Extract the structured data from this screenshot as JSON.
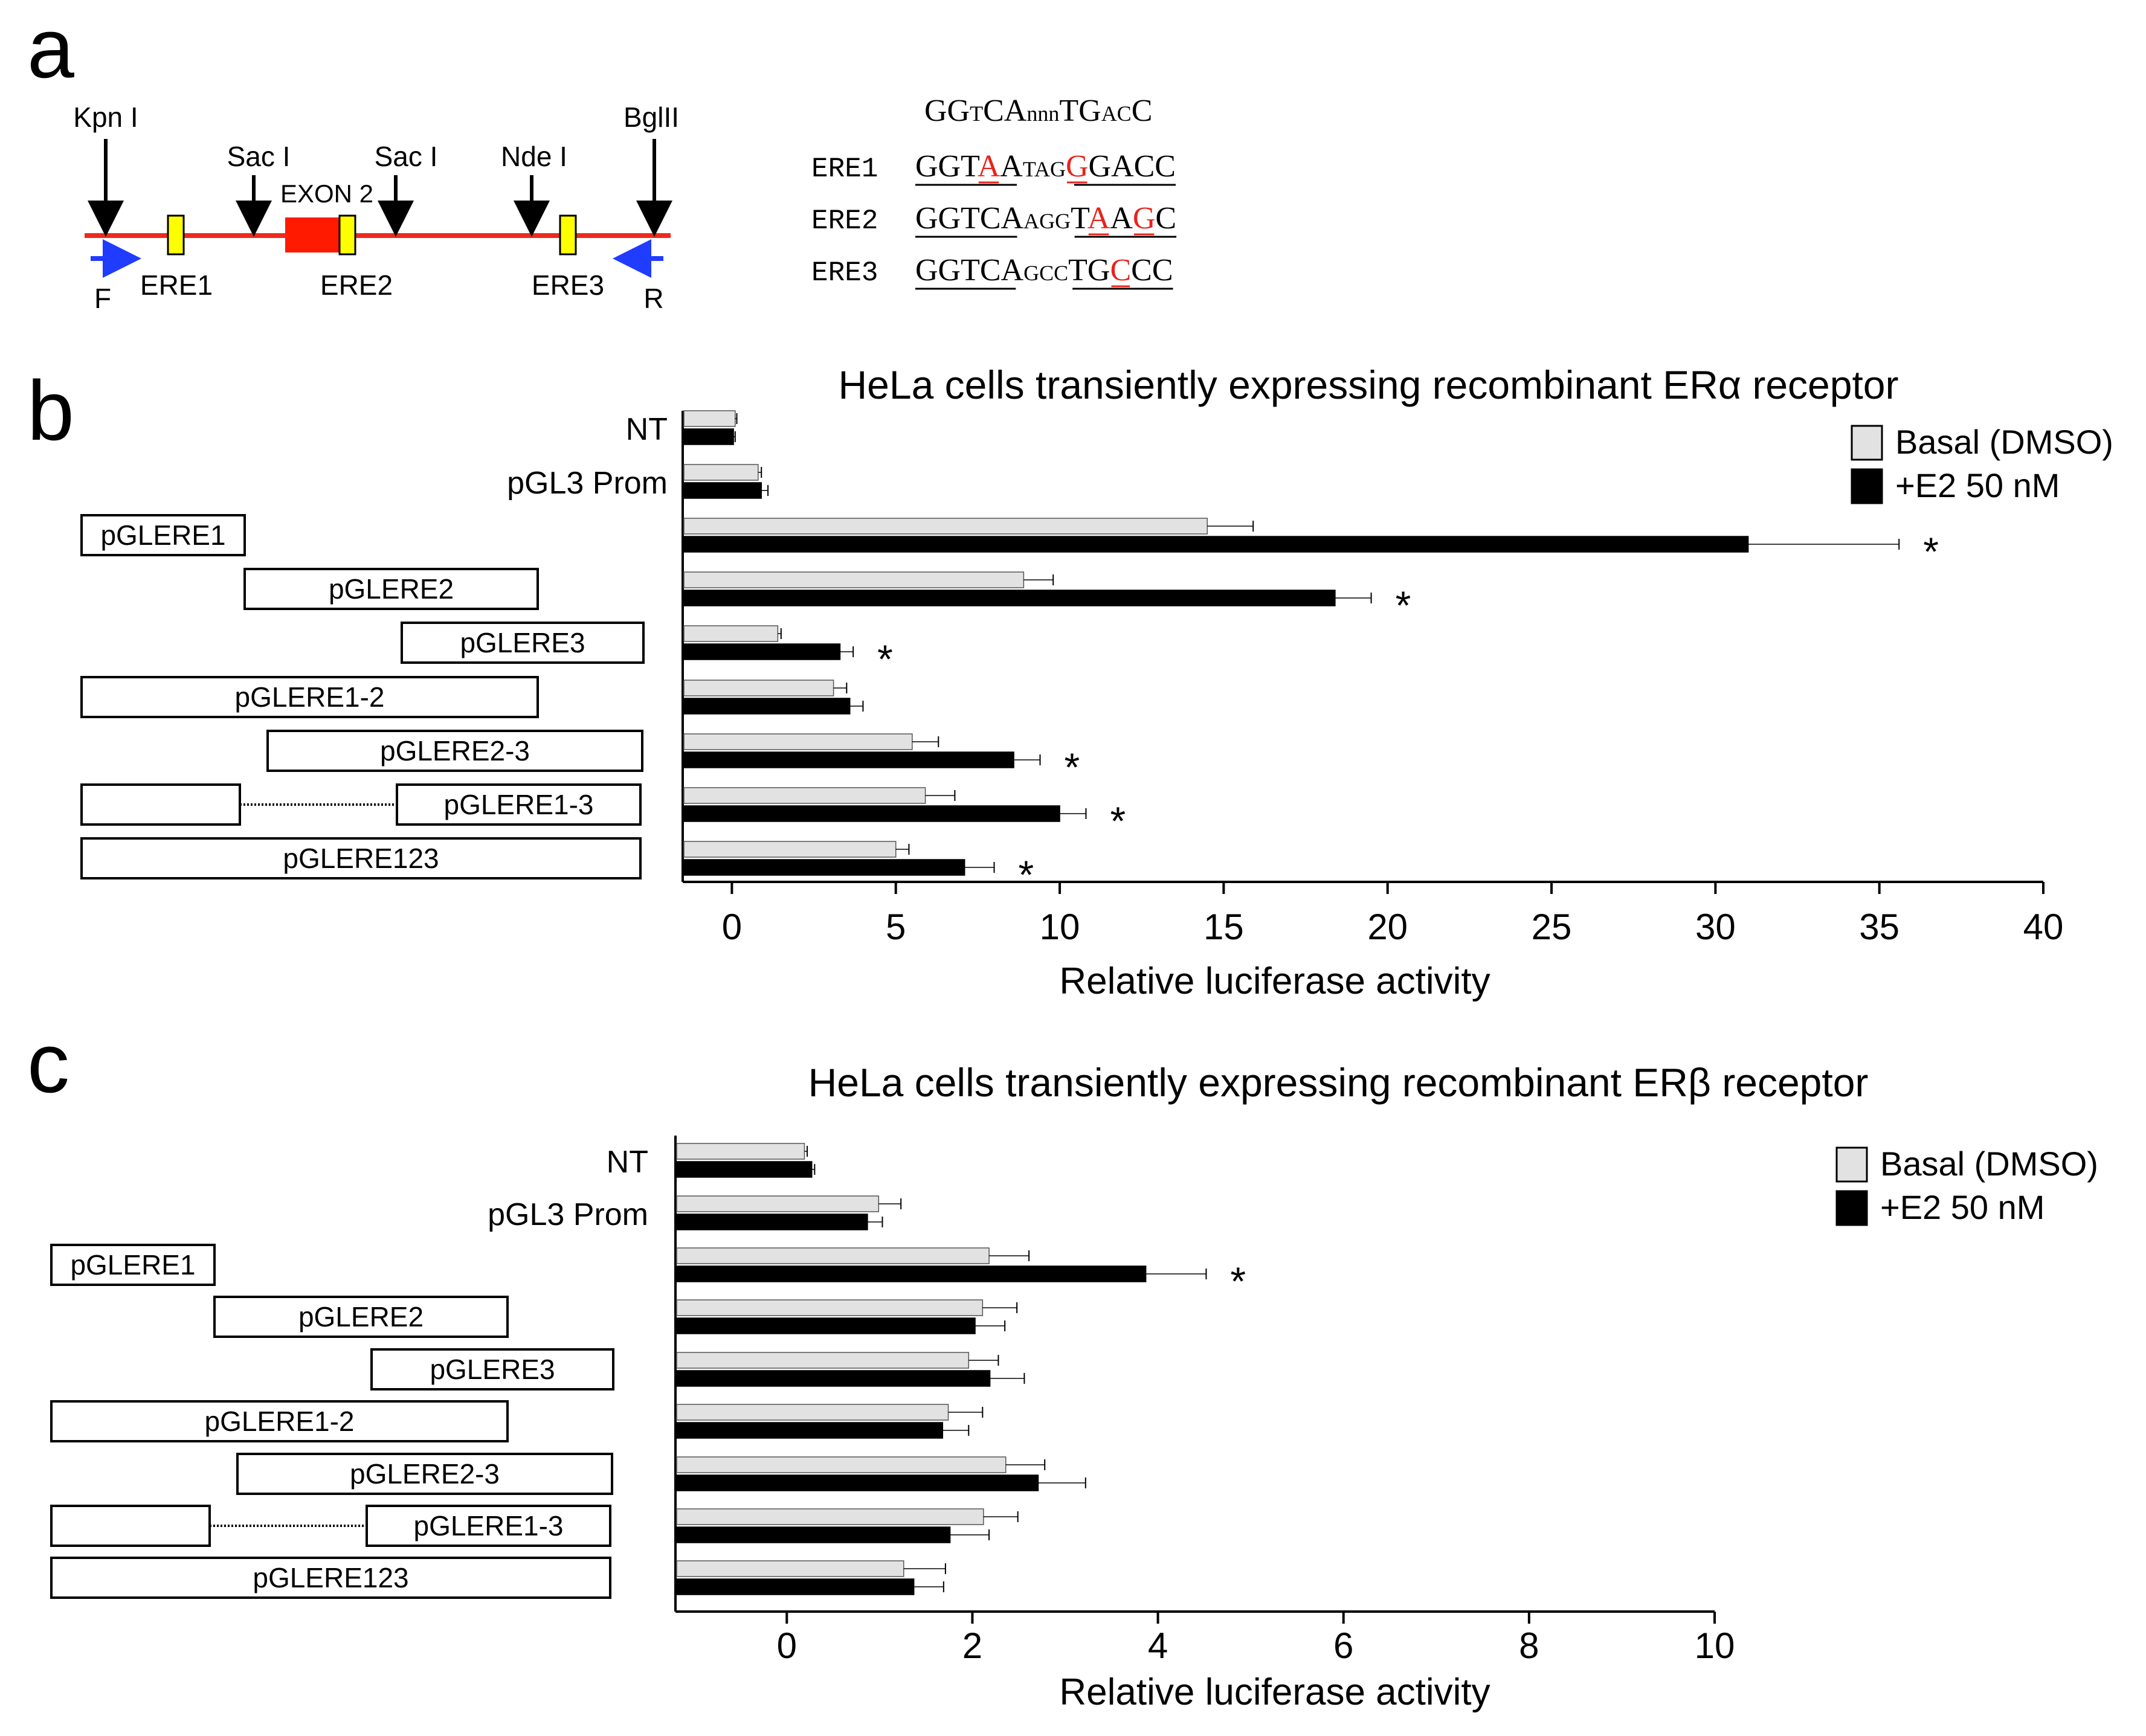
{
  "panels": {
    "a": {
      "letter": "a",
      "restriction_sites": [
        "Kpn I",
        "Sac I",
        "Sac I",
        "Nde I",
        "BglII"
      ],
      "exon_label": "EXON 2",
      "ere_labels": [
        "ERE1",
        "ERE2",
        "ERE3"
      ],
      "primer_f": "F",
      "primer_r": "R",
      "consensus": [
        {
          "t": "GG",
          "small": false
        },
        {
          "t": "T",
          "small": true
        },
        {
          "t": "CA",
          "small": false
        },
        {
          "t": "nnn",
          "small": true
        },
        {
          "t": "TG",
          "small": false
        },
        {
          "t": "AC",
          "small": true
        },
        {
          "t": "C",
          "small": false
        }
      ],
      "sequences": [
        {
          "name": "ERE1",
          "parts": [
            {
              "t": "GGT",
              "small": false,
              "red": false
            },
            {
              "t": "A",
              "small": false,
              "red": true
            },
            {
              "t": "A",
              "small": false,
              "red": false
            },
            {
              "t": "TAG",
              "small": true,
              "red": false
            },
            {
              "t": "G",
              "small": false,
              "red": true
            },
            {
              "t": "GACC",
              "small": false,
              "red": false
            }
          ]
        },
        {
          "name": "ERE2",
          "parts": [
            {
              "t": "GGTCA",
              "small": false,
              "red": false
            },
            {
              "t": "AGG",
              "small": true,
              "red": false
            },
            {
              "t": "T",
              "small": false,
              "red": false
            },
            {
              "t": "A",
              "small": false,
              "red": true
            },
            {
              "t": "A",
              "small": false,
              "red": false
            },
            {
              "t": "G",
              "small": false,
              "red": true
            },
            {
              "t": "C",
              "small": false,
              "red": false
            }
          ]
        },
        {
          "name": "ERE3",
          "parts": [
            {
              "t": "GGTCA",
              "small": false,
              "red": false
            },
            {
              "t": "GCC",
              "small": true,
              "red": false
            },
            {
              "t": "TG",
              "small": false,
              "red": false
            },
            {
              "t": "C",
              "small": false,
              "red": true
            },
            {
              "t": "CC",
              "small": false,
              "red": false
            }
          ]
        }
      ],
      "colors": {
        "line": "#ee2a1c",
        "exon": "#ff1a00",
        "ere_box": "#ffff00",
        "primer": "#1f3cff",
        "mutation": "#e8231c"
      }
    },
    "b": {
      "letter": "b"
    },
    "c": {
      "letter": "c"
    }
  },
  "construct_labels": [
    "pGLERE1",
    "pGLERE2",
    "pGLERE3",
    "pGLERE1-2",
    "pGLERE2-3",
    "pGLERE1-3",
    "pGLERE123"
  ],
  "colors": {
    "basal": "#e2e2e2",
    "e2": "#000000",
    "axis": "#000000"
  },
  "chart_data": [
    {
      "type": "bar",
      "orientation": "horizontal",
      "title": "HeLa cells transiently expressing recombinant ERα receptor",
      "xlabel": "Relative luciferase activity",
      "ylabel": "",
      "xlim": [
        -1.5,
        40
      ],
      "xticks": [
        0,
        5,
        10,
        15,
        20,
        25,
        30,
        35,
        40
      ],
      "categories": [
        "NT",
        "pGL3 Prom",
        "pGLERE1",
        "pGLERE2",
        "pGLERE3",
        "pGLERE1-2",
        "pGLERE2-3",
        "pGLERE1-3",
        "pGLERE123"
      ],
      "legend_position": "top-right",
      "series": [
        {
          "name": "Basal (DMSO)",
          "values": [
            0.1,
            0.8,
            14.5,
            8.9,
            1.4,
            3.1,
            5.5,
            5.9,
            5.0
          ],
          "errors": [
            0.05,
            0.1,
            1.4,
            0.9,
            0.1,
            0.4,
            0.8,
            0.9,
            0.4
          ]
        },
        {
          "name": "+E2 50 nM",
          "values": [
            0.05,
            0.9,
            31.0,
            18.4,
            3.3,
            3.6,
            8.6,
            10.0,
            7.1
          ],
          "errors": [
            0.05,
            0.2,
            4.6,
            1.1,
            0.4,
            0.4,
            0.8,
            0.8,
            0.9
          ]
        }
      ],
      "significant": [
        false,
        false,
        true,
        true,
        true,
        false,
        true,
        true,
        true
      ],
      "annotation": "*"
    },
    {
      "type": "bar",
      "orientation": "horizontal",
      "title": "HeLa cells transiently expressing recombinant ERβ receptor",
      "xlabel": "Relative luciferase activity",
      "ylabel": "",
      "xlim": [
        -1.2,
        10
      ],
      "xticks": [
        0,
        2,
        4,
        6,
        8,
        10
      ],
      "categories": [
        "NT",
        "pGL3 Prom",
        "pGLERE1",
        "pGLERE2",
        "pGLERE3",
        "pGLERE1-2",
        "pGLERE2-3",
        "pGLERE1-3",
        "pGLERE123"
      ],
      "legend_position": "top-right",
      "series": [
        {
          "name": "Basal (DMSO)",
          "values": [
            0.19,
            0.99,
            2.18,
            2.11,
            1.96,
            1.74,
            2.36,
            2.12,
            1.26
          ],
          "errors": [
            0.03,
            0.24,
            0.43,
            0.37,
            0.32,
            0.37,
            0.42,
            0.37,
            0.45
          ]
        },
        {
          "name": "+E2 50 nM",
          "values": [
            0.27,
            0.87,
            3.87,
            2.03,
            2.19,
            1.68,
            2.71,
            1.76,
            1.37
          ],
          "errors": [
            0.03,
            0.16,
            0.65,
            0.32,
            0.37,
            0.28,
            0.51,
            0.42,
            0.32
          ]
        }
      ],
      "significant": [
        false,
        false,
        true,
        false,
        false,
        false,
        false,
        false,
        false
      ],
      "annotation": "*"
    }
  ]
}
